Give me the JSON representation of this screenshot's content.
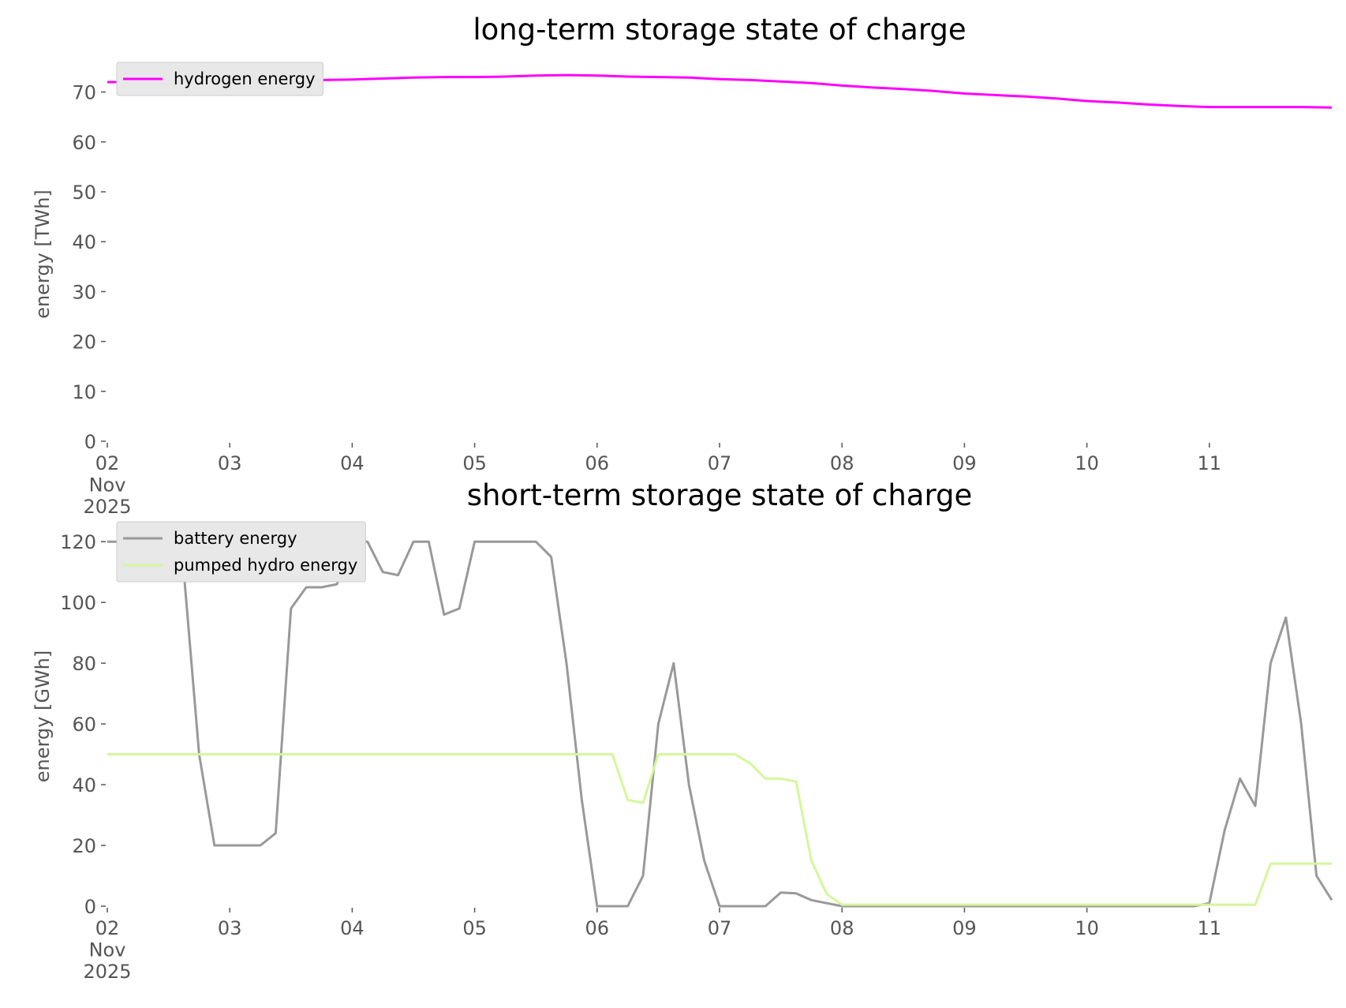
{
  "chart_data": [
    {
      "type": "line",
      "title": "long-term storage state of charge",
      "y_label": "energy [TWh]",
      "x": [
        2.0,
        2.25,
        2.5,
        2.75,
        3.0,
        3.25,
        3.5,
        3.75,
        4.0,
        4.25,
        4.5,
        4.75,
        5.0,
        5.25,
        5.5,
        5.75,
        6.0,
        6.25,
        6.5,
        6.75,
        7.0,
        7.25,
        7.5,
        7.75,
        8.0,
        8.25,
        8.5,
        8.75,
        9.0,
        9.25,
        9.5,
        9.75,
        10.0,
        10.25,
        10.5,
        10.75,
        11.0,
        11.25,
        11.5,
        11.75,
        12.0
      ],
      "series": [
        {
          "name": "hydrogen energy",
          "color": "#ff00ff",
          "values": [
            72.0,
            72.0,
            72.1,
            72.2,
            72.3,
            72.3,
            72.4,
            72.4,
            72.5,
            72.7,
            72.9,
            73.0,
            73.0,
            73.1,
            73.3,
            73.4,
            73.3,
            73.1,
            73.0,
            72.9,
            72.6,
            72.4,
            72.1,
            71.8,
            71.3,
            70.9,
            70.6,
            70.2,
            69.7,
            69.4,
            69.1,
            68.7,
            68.2,
            67.9,
            67.5,
            67.2,
            67.0,
            67.0,
            67.0,
            67.0,
            66.9
          ]
        }
      ],
      "xlim": [
        2,
        12
      ],
      "xticks": [
        {
          "value": 2,
          "label": "02\nNov\n2025"
        },
        {
          "value": 3,
          "label": "03"
        },
        {
          "value": 4,
          "label": "04"
        },
        {
          "value": 5,
          "label": "05"
        },
        {
          "value": 6,
          "label": "06"
        },
        {
          "value": 7,
          "label": "07"
        },
        {
          "value": 8,
          "label": "08"
        },
        {
          "value": 9,
          "label": "09"
        },
        {
          "value": 10,
          "label": "10"
        },
        {
          "value": 11,
          "label": "11"
        }
      ],
      "ylim": [
        0,
        75
      ],
      "yticks": [
        0,
        10,
        20,
        30,
        40,
        50,
        60,
        70
      ],
      "grid": false,
      "legend": "upper left"
    },
    {
      "type": "line",
      "title": "short-term storage state of charge",
      "y_label": "energy [GWh]",
      "x": [
        2.0,
        2.125,
        2.25,
        2.375,
        2.5,
        2.625,
        2.75,
        2.875,
        3.0,
        3.125,
        3.25,
        3.375,
        3.5,
        3.625,
        3.75,
        3.875,
        4.0,
        4.125,
        4.25,
        4.375,
        4.5,
        4.625,
        4.75,
        4.875,
        5.0,
        5.125,
        5.25,
        5.375,
        5.5,
        5.625,
        5.75,
        5.875,
        6.0,
        6.125,
        6.25,
        6.375,
        6.5,
        6.625,
        6.75,
        6.875,
        7.0,
        7.125,
        7.25,
        7.375,
        7.5,
        7.625,
        7.75,
        7.875,
        8.0,
        8.125,
        8.25,
        8.375,
        8.5,
        8.625,
        8.75,
        8.875,
        9.0,
        9.125,
        9.25,
        9.375,
        9.5,
        9.625,
        9.75,
        9.875,
        10.0,
        10.125,
        10.25,
        10.375,
        10.5,
        10.625,
        10.75,
        10.875,
        11.0,
        11.125,
        11.25,
        11.375,
        11.5,
        11.625,
        11.75,
        11.875,
        12.0
      ],
      "series": [
        {
          "name": "battery energy",
          "color": "#999999",
          "values": [
            120,
            120,
            120,
            120,
            120,
            110,
            50,
            20,
            20,
            20,
            20,
            24,
            98,
            105,
            105,
            106,
            120,
            120,
            110,
            109,
            120,
            120,
            96,
            98,
            120,
            120,
            120,
            120,
            120,
            115,
            80,
            35,
            0,
            0,
            0,
            10,
            60,
            80,
            40,
            15,
            0,
            0,
            0,
            0,
            4.5,
            4.2,
            2,
            1,
            0,
            0,
            0,
            0,
            0,
            0,
            0,
            0,
            0,
            0,
            0,
            0,
            0,
            0,
            0,
            0,
            0,
            0,
            0,
            0,
            0,
            0,
            0,
            0,
            1,
            25,
            42,
            33,
            80,
            95,
            60,
            10,
            2
          ]
        },
        {
          "name": "pumped hydro energy",
          "color": "#d4f79a",
          "values": [
            50,
            50,
            50,
            50,
            50,
            50,
            50,
            50,
            50,
            50,
            50,
            50,
            50,
            50,
            50,
            50,
            50,
            50,
            50,
            50,
            50,
            50,
            50,
            50,
            50,
            50,
            50,
            50,
            50,
            50,
            50,
            50,
            50,
            50,
            35,
            34,
            50,
            50,
            50,
            50,
            50,
            50,
            47,
            42,
            42,
            41,
            15,
            4,
            0.5,
            0.5,
            0.5,
            0.5,
            0.5,
            0.5,
            0.5,
            0.5,
            0.5,
            0.5,
            0.5,
            0.5,
            0.5,
            0.5,
            0.5,
            0.5,
            0.5,
            0.5,
            0.5,
            0.5,
            0.5,
            0.5,
            0.5,
            0.5,
            0.5,
            0.5,
            0.5,
            0.5,
            14,
            14,
            14,
            14,
            14
          ]
        }
      ],
      "xlim": [
        2,
        12
      ],
      "xticks": [
        {
          "value": 2,
          "label": "02\nNov\n2025"
        },
        {
          "value": 3,
          "label": "03"
        },
        {
          "value": 4,
          "label": "04"
        },
        {
          "value": 5,
          "label": "05"
        },
        {
          "value": 6,
          "label": "06"
        },
        {
          "value": 7,
          "label": "07"
        },
        {
          "value": 8,
          "label": "08"
        },
        {
          "value": 9,
          "label": "09"
        },
        {
          "value": 10,
          "label": "10"
        },
        {
          "value": 11,
          "label": "11"
        }
      ],
      "ylim": [
        0,
        125
      ],
      "yticks": [
        0,
        20,
        40,
        60,
        80,
        100,
        120
      ],
      "grid": false,
      "legend": "upper left"
    }
  ]
}
